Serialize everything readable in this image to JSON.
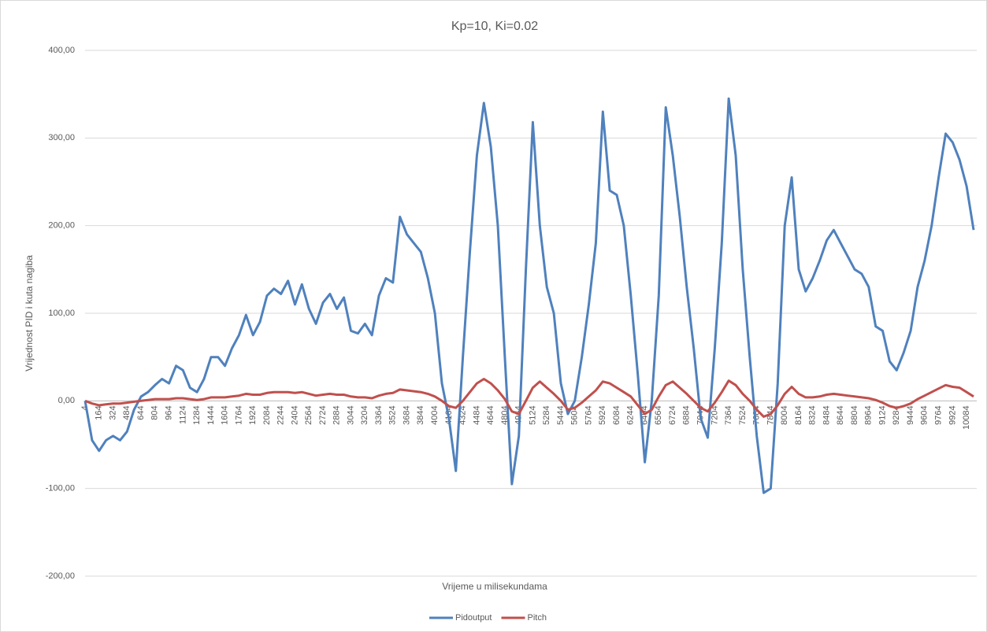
{
  "chart_data": {
    "type": "line",
    "title": "Kp=10, Ki=0.02",
    "x_label": "Vrijeme u milisekundama",
    "y_label": "Vrijednost PID i kuta nagiba",
    "categories": [
      "4",
      null,
      "164",
      null,
      "324",
      null,
      "484",
      null,
      "644",
      null,
      "804",
      null,
      "964",
      null,
      "1124",
      null,
      "1284",
      null,
      "1444",
      null,
      "1604",
      null,
      "1764",
      null,
      "1924",
      null,
      "2084",
      null,
      "2244",
      null,
      "2404",
      null,
      "2564",
      null,
      "2724",
      null,
      "2884",
      null,
      "3044",
      null,
      "3204",
      null,
      "3364",
      null,
      "3524",
      null,
      "3684",
      null,
      "3844",
      null,
      "4004",
      null,
      "4164",
      null,
      "4324",
      null,
      "4484",
      null,
      "4644",
      null,
      "4804",
      null,
      "4964",
      null,
      "5124",
      null,
      "5284",
      null,
      "5444",
      null,
      "5604",
      null,
      "5764",
      null,
      "5924",
      null,
      "6084",
      null,
      "6244",
      null,
      "6404",
      null,
      "6564",
      null,
      "6724",
      null,
      "6884",
      null,
      "7044",
      null,
      "7204",
      null,
      "7364",
      null,
      "7524",
      null,
      "7684",
      null,
      "7844",
      null,
      "8004",
      null,
      "8164",
      null,
      "8324",
      null,
      "8484",
      null,
      "8644",
      null,
      "8804",
      null,
      "8964",
      null,
      "9124",
      null,
      "9284",
      null,
      "9444",
      null,
      "9604",
      null,
      "9764",
      null,
      "9924",
      null,
      "10084",
      null
    ],
    "series": [
      {
        "name": "Pidoutput",
        "color": "#4f81bd",
        "values": [
          0,
          -45,
          -57,
          -45,
          -40,
          -45,
          -35,
          -10,
          5,
          10,
          18,
          25,
          20,
          40,
          35,
          15,
          10,
          25,
          50,
          50,
          40,
          60,
          75,
          98,
          75,
          90,
          120,
          128,
          122,
          137,
          110,
          133,
          105,
          88,
          112,
          122,
          105,
          118,
          80,
          77,
          88,
          75,
          120,
          140,
          135,
          210,
          190,
          180,
          170,
          140,
          100,
          20,
          -20,
          -80,
          50,
          170,
          280,
          340,
          290,
          200,
          50,
          -95,
          -40,
          150,
          318,
          200,
          130,
          100,
          20,
          -15,
          0,
          50,
          110,
          180,
          330,
          240,
          235,
          200,
          120,
          30,
          -70,
          0,
          120,
          335,
          280,
          210,
          130,
          60,
          -20,
          -42,
          60,
          180,
          345,
          280,
          150,
          50,
          -40,
          -105,
          -100,
          20,
          200,
          255,
          150,
          125,
          140,
          160,
          183,
          195,
          180,
          165,
          150,
          145,
          130,
          85,
          80,
          45,
          35,
          55,
          80,
          130,
          160,
          200,
          255,
          305,
          295,
          275,
          245,
          195
        ]
      },
      {
        "name": "Pitch",
        "color": "#c0504d",
        "values": [
          0,
          -3,
          -5,
          -4,
          -3,
          -3,
          -2,
          -1,
          0,
          1,
          2,
          2,
          2,
          3,
          3,
          2,
          1,
          2,
          4,
          4,
          4,
          5,
          6,
          8,
          7,
          7,
          9,
          10,
          10,
          10,
          9,
          10,
          8,
          6,
          7,
          8,
          7,
          7,
          5,
          4,
          4,
          3,
          6,
          8,
          9,
          13,
          12,
          11,
          10,
          8,
          5,
          0,
          -6,
          -8,
          0,
          10,
          20,
          25,
          20,
          12,
          2,
          -12,
          -15,
          0,
          15,
          22,
          15,
          8,
          0,
          -10,
          -8,
          -2,
          5,
          12,
          22,
          20,
          15,
          10,
          5,
          -5,
          -15,
          -10,
          5,
          18,
          22,
          15,
          8,
          0,
          -8,
          -12,
          -2,
          10,
          23,
          18,
          8,
          0,
          -10,
          -18,
          -15,
          -5,
          8,
          16,
          8,
          4,
          4,
          5,
          7,
          8,
          7,
          6,
          5,
          4,
          3,
          1,
          -2,
          -6,
          -8,
          -6,
          -3,
          2,
          6,
          10,
          14,
          18,
          16,
          15,
          10,
          5
        ]
      }
    ],
    "ylim": [
      -200,
      400
    ],
    "yticks": [
      {
        "value": -200,
        "label": "-200,00"
      },
      {
        "value": -100,
        "label": "-100,00"
      },
      {
        "value": 0,
        "label": "0,00"
      },
      {
        "value": 100,
        "label": "100,00"
      },
      {
        "value": 200,
        "label": "200,00"
      },
      {
        "value": 300,
        "label": "300,00"
      },
      {
        "value": 400,
        "label": "400,00"
      }
    ],
    "grid": true,
    "legend": "bottom"
  }
}
